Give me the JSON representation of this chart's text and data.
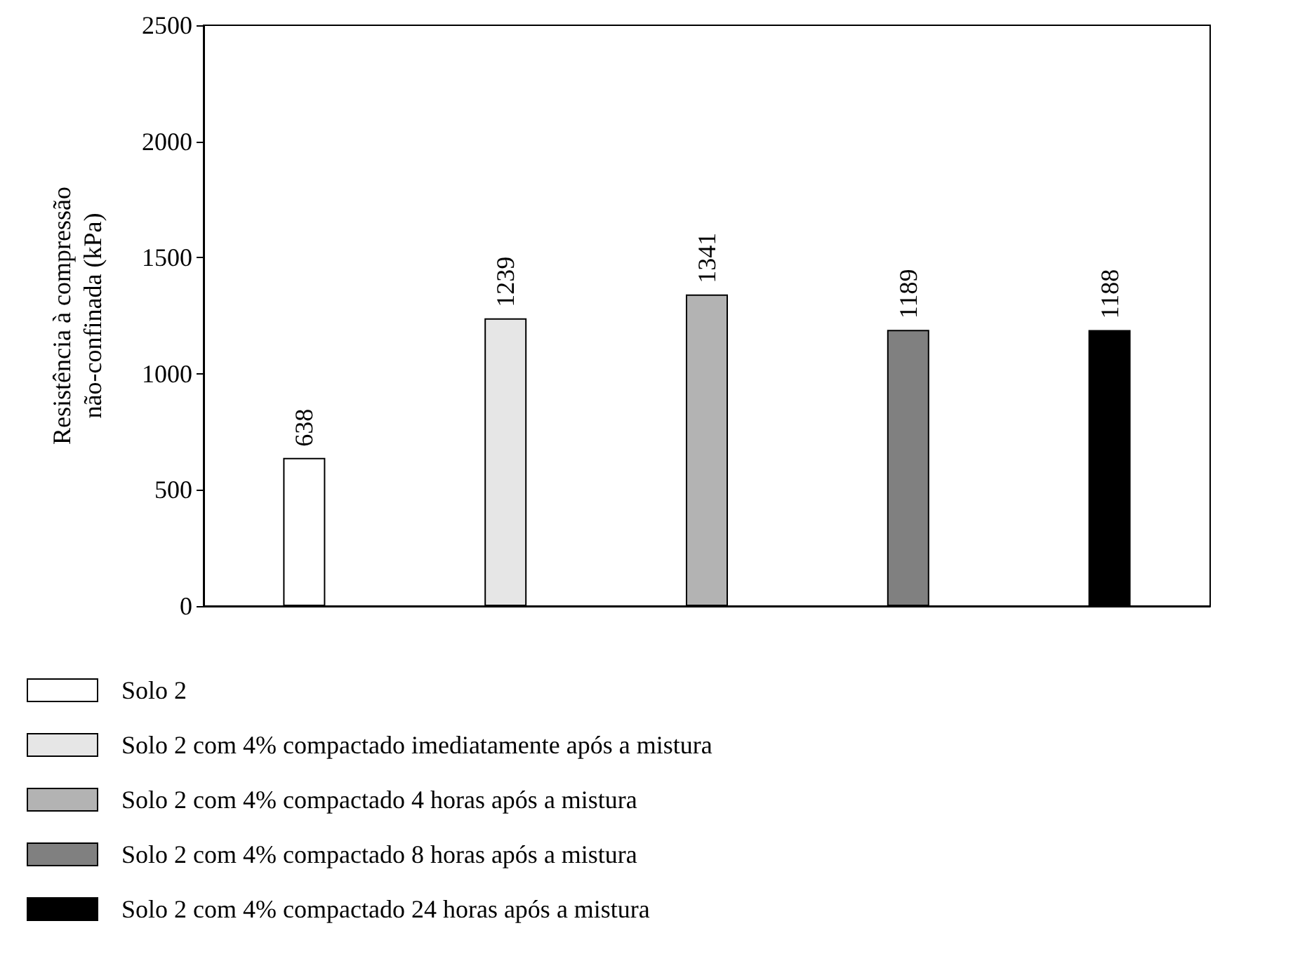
{
  "chart_data": {
    "type": "bar",
    "ylabel": "Resistência à compressão\nnão-confinada (kPa)",
    "categories": [
      null,
      null,
      null,
      null,
      null
    ],
    "series": [
      {
        "name": "Solo 2",
        "color": "#ffffff",
        "values": [
          638,
          null,
          null,
          null,
          null
        ]
      },
      {
        "name": "Solo 2 com 4% compactado imediatamente após a mistura",
        "color": "#e6e6e6",
        "values": [
          null,
          1239,
          null,
          null,
          null
        ]
      },
      {
        "name": "Solo 2 com 4% compactado 4 horas após a mistura",
        "color": "#b3b3b3",
        "values": [
          null,
          null,
          1341,
          null,
          null
        ]
      },
      {
        "name": "Solo 2 com 4% compactado 8 horas após a mistura",
        "color": "#808080",
        "values": [
          null,
          null,
          null,
          1189,
          null
        ]
      },
      {
        "name": "Solo 2 com 4% compactado 24 horas após a mistura",
        "color": "#000000",
        "values": [
          null,
          null,
          null,
          null,
          1188
        ]
      }
    ],
    "ylim": [
      0,
      2500
    ],
    "yticks": [
      0,
      500,
      1000,
      1500,
      2000,
      2500
    ],
    "data_labels": true,
    "grid": false,
    "legend": "bottom",
    "tick_labels": "y"
  }
}
